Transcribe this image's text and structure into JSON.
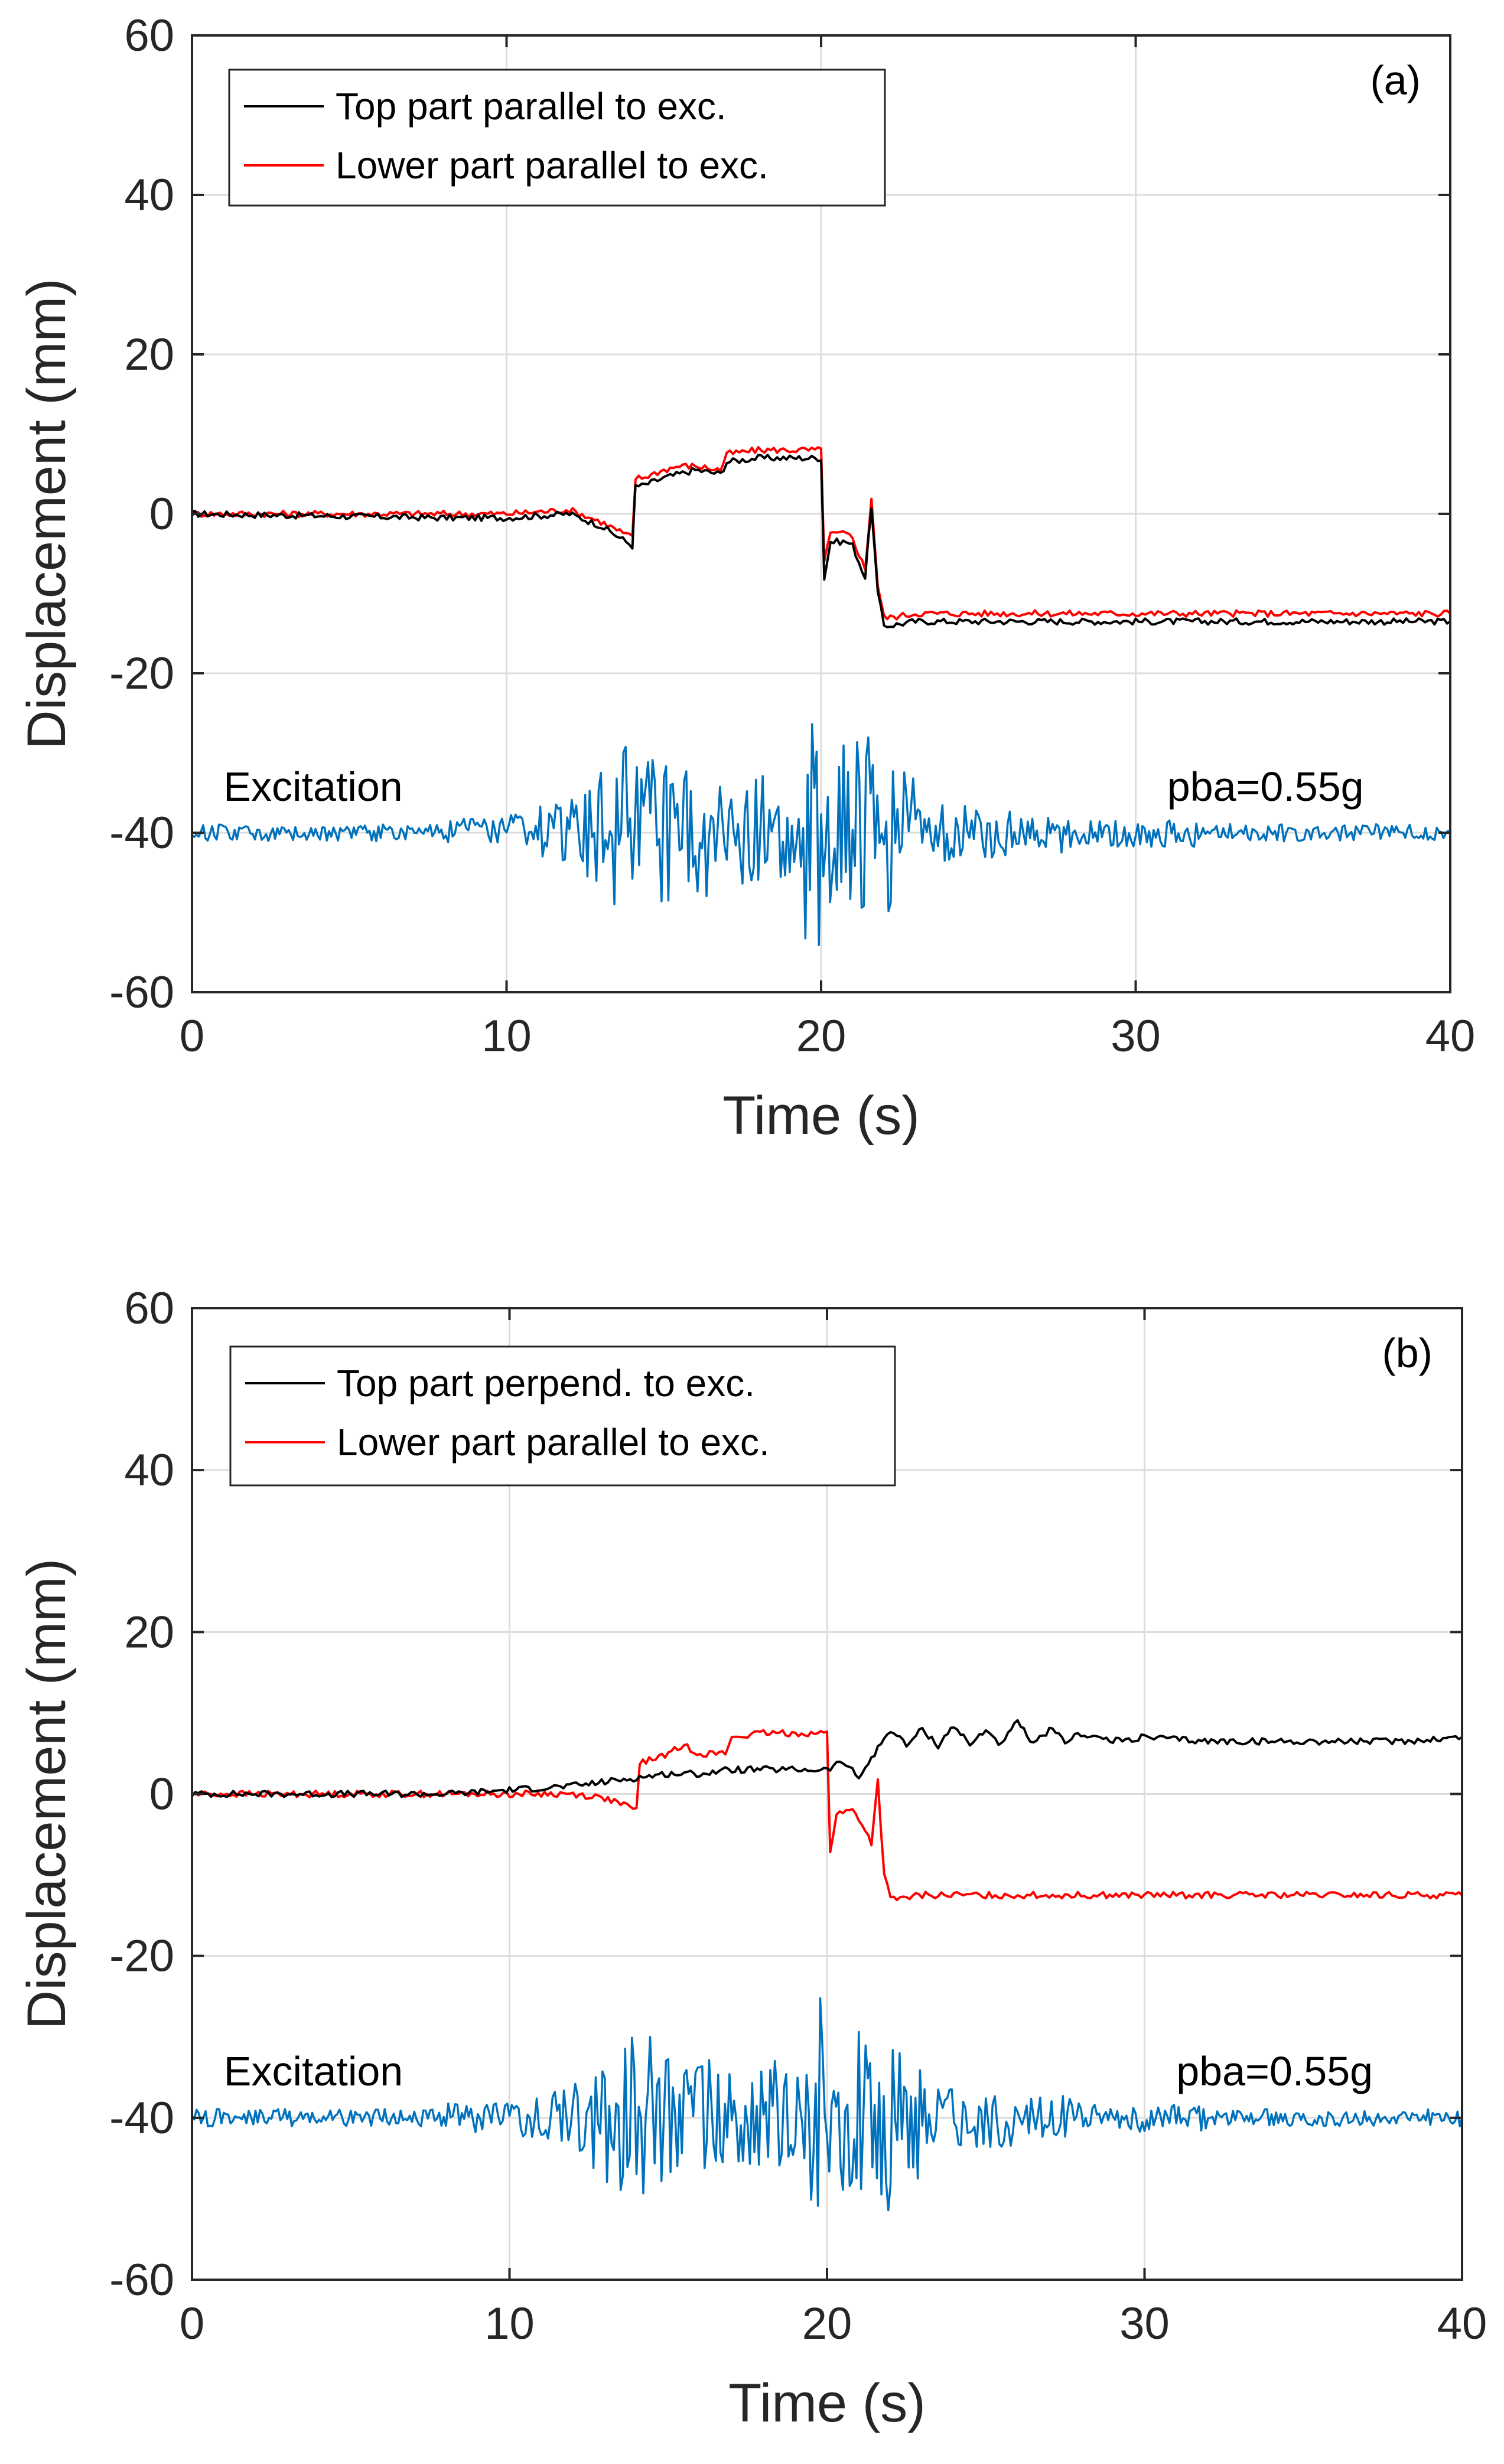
{
  "chart_data": [
    {
      "type": "line",
      "panel_label": "(a)",
      "xlabel": "Time (s)",
      "ylabel": "Displacement (mm)",
      "xlim": [
        0,
        40
      ],
      "ylim": [
        -60,
        60
      ],
      "xticks": [
        "0",
        "10",
        "20",
        "30",
        "40"
      ],
      "yticks": [
        "60",
        "40",
        "20",
        "0",
        "-20",
        "-40",
        "-60"
      ],
      "grid": true,
      "legend_position": "top-left",
      "annotations": {
        "excitation": "Excitation",
        "pba": "pba=0.55g"
      },
      "series": [
        {
          "name": "Top part parallel to exc.",
          "color": "#000000",
          "x": [
            0,
            8,
            10,
            12,
            13,
            14,
            14.1,
            14.3,
            15,
            15.5,
            16,
            16.8,
            17,
            18,
            19,
            20,
            20.1,
            20.3,
            20.8,
            21,
            21.4,
            21.6,
            21.8,
            22,
            22.2,
            23,
            25,
            28,
            30,
            35,
            40
          ],
          "y": [
            0,
            -0.5,
            -0.5,
            0,
            -1.5,
            -4,
            3.5,
            3.5,
            4.5,
            5,
            5.5,
            5,
            6.5,
            7,
            7,
            7,
            -8,
            -3.5,
            -3.5,
            -4,
            -8,
            1,
            -10,
            -14,
            -14,
            -13.5,
            -13.5,
            -13.5,
            -13.5,
            -13.5,
            -13.5
          ]
        },
        {
          "name": "Lower part parallel to exc.",
          "color": "#ff0000",
          "x": [
            0,
            8,
            10,
            12,
            13,
            14,
            14.1,
            14.3,
            15,
            15.5,
            16,
            16.8,
            17,
            18,
            19,
            20,
            20.1,
            20.3,
            20.8,
            21,
            21.4,
            21.6,
            21.8,
            22,
            22.2,
            23,
            25,
            28,
            30,
            35,
            40
          ],
          "y": [
            0,
            0,
            0,
            0.5,
            -1,
            -3,
            4.5,
            4.5,
            5.5,
            6,
            6,
            5.5,
            7.5,
            8,
            8,
            8,
            -6,
            -2.5,
            -2.5,
            -3,
            -7,
            2,
            -9,
            -13,
            -13,
            -12.5,
            -12.5,
            -12.5,
            -12.5,
            -12.5,
            -12.5
          ]
        },
        {
          "name": "Excitation",
          "color": "#0072bd",
          "x": [
            0,
            2,
            4,
            6,
            8,
            9,
            10,
            11,
            12,
            12.5,
            13,
            13.5,
            14,
            14.5,
            15,
            15.5,
            16,
            16.5,
            17,
            17.5,
            18,
            18.5,
            19,
            19.5,
            20,
            20.5,
            21,
            21.5,
            22,
            22.5,
            23,
            24,
            25,
            26,
            27,
            28,
            29,
            30,
            32,
            34,
            36,
            38,
            40
          ],
          "y": [
            -40,
            -40,
            -40,
            -40,
            -40,
            -38,
            -42,
            -37,
            -44,
            -35,
            -47,
            -30,
            -52,
            -28,
            -50,
            -31,
            -49,
            -33,
            -45,
            -34,
            -48,
            -33,
            -46,
            -35,
            -23,
            -52,
            -27,
            -54,
            -29,
            -49,
            -36,
            -44,
            -36,
            -43,
            -37,
            -42,
            -38,
            -42,
            -39,
            -41,
            -39,
            -41,
            -40
          ]
        }
      ]
    },
    {
      "type": "line",
      "panel_label": "(b)",
      "xlabel": "Time (s)",
      "ylabel": "Displacement (mm)",
      "xlim": [
        0,
        40
      ],
      "ylim": [
        -60,
        60
      ],
      "xticks": [
        "0",
        "10",
        "20",
        "30",
        "40"
      ],
      "yticks": [
        "60",
        "40",
        "20",
        "0",
        "-20",
        "-40",
        "-60"
      ],
      "grid": true,
      "legend_position": "top-left",
      "annotations": {
        "excitation": "Excitation",
        "pba": "pba=0.55g"
      },
      "series": [
        {
          "name": "Top part perpend. to exc.",
          "color": "#000000",
          "x": [
            0,
            8,
            10,
            12,
            13,
            14,
            15,
            16,
            17,
            18,
            19,
            20,
            20.5,
            21,
            21.5,
            22,
            22.5,
            23,
            23.5,
            24,
            24.5,
            25,
            25.5,
            26,
            26.5,
            27,
            27.5,
            28,
            29,
            30,
            32,
            34,
            36,
            38,
            40
          ],
          "y": [
            0,
            0,
            0.5,
            1,
            1.5,
            2,
            2.5,
            2.5,
            3,
            3,
            3,
            3,
            4,
            2,
            5,
            8,
            6,
            8,
            6,
            8.5,
            6,
            8,
            6,
            9,
            6,
            8,
            6.5,
            7.5,
            6.5,
            7,
            6.5,
            6.5,
            6.5,
            6.5,
            7
          ]
        },
        {
          "name": "Lower part parallel to exc.",
          "color": "#ff0000",
          "x": [
            0,
            8,
            10,
            12,
            13,
            14,
            14.1,
            14.3,
            15,
            15.5,
            16,
            16.8,
            17,
            18,
            19,
            20,
            20.1,
            20.3,
            20.8,
            21,
            21.4,
            21.6,
            21.8,
            22,
            22.2,
            23,
            25,
            28,
            30,
            35,
            40
          ],
          "y": [
            0,
            0,
            0,
            0,
            -0.5,
            -2,
            4,
            4,
            5,
            6,
            5,
            5,
            7,
            7.5,
            7.5,
            7.5,
            -7,
            -2.5,
            -2,
            -3,
            -6,
            1.5,
            -10,
            -13,
            -13,
            -12.5,
            -12.5,
            -12.5,
            -12.5,
            -12.5,
            -12.5
          ]
        },
        {
          "name": "Excitation",
          "color": "#0072bd",
          "x": [
            0,
            2,
            4,
            6,
            8,
            9,
            10,
            11,
            12,
            12.5,
            13,
            13.5,
            14,
            14.5,
            15,
            15.5,
            16,
            16.5,
            17,
            17.5,
            18,
            18.5,
            19,
            19.5,
            20,
            20.5,
            21,
            21.5,
            22,
            22.5,
            23,
            24,
            25,
            26,
            27,
            28,
            29,
            30,
            32,
            34,
            36,
            38,
            40
          ],
          "y": [
            -40,
            -40,
            -40,
            -40,
            -40,
            -38,
            -42,
            -37,
            -44,
            -35,
            -47,
            -30,
            -52,
            -28,
            -50,
            -31,
            -49,
            -33,
            -45,
            -34,
            -48,
            -33,
            -46,
            -35,
            -23,
            -52,
            -27,
            -54,
            -29,
            -49,
            -36,
            -44,
            -36,
            -43,
            -37,
            -42,
            -38,
            -42,
            -39,
            -41,
            -39,
            -41,
            -40
          ]
        }
      ]
    }
  ]
}
